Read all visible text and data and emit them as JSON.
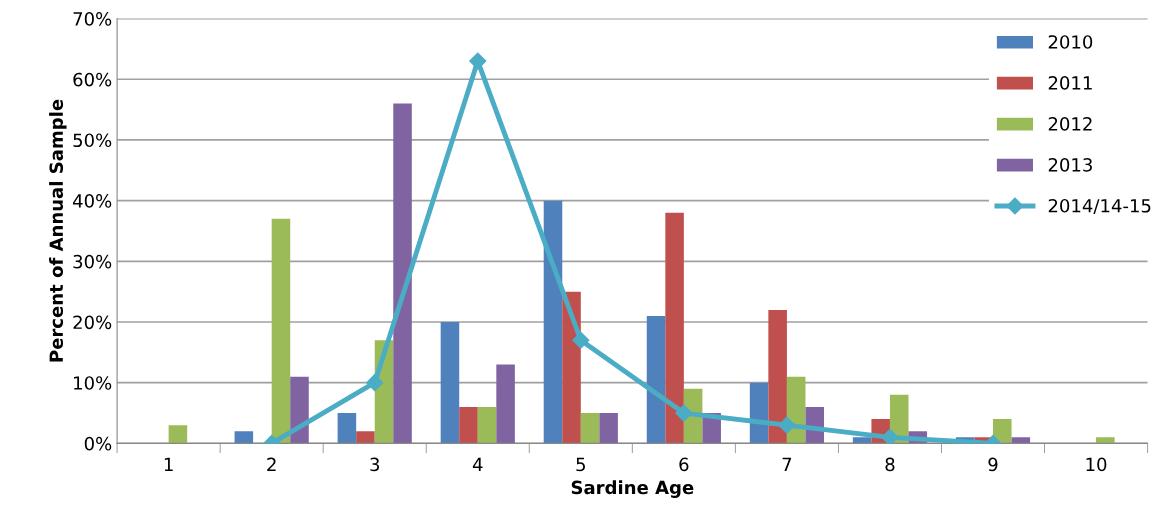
{
  "chart_data": {
    "type": "bar",
    "xlabel": "Sardine Age",
    "ylabel": "Percent of Annual Sample",
    "categories": [
      "1",
      "2",
      "3",
      "4",
      "5",
      "6",
      "7",
      "8",
      "9",
      "10"
    ],
    "series": [
      {
        "name": "2010",
        "color": "#4f81bd",
        "values": [
          0,
          2,
          5,
          20,
          40,
          21,
          10,
          1,
          1,
          0
        ]
      },
      {
        "name": "2011",
        "color": "#c0504d",
        "values": [
          0,
          0,
          2,
          6,
          25,
          38,
          22,
          4,
          1,
          0
        ]
      },
      {
        "name": "2012",
        "color": "#9bbb59",
        "values": [
          3,
          37,
          17,
          6,
          5,
          9,
          11,
          8,
          4,
          1
        ]
      },
      {
        "name": "2013",
        "color": "#8064a2",
        "values": [
          0,
          11,
          56,
          13,
          5,
          5,
          6,
          2,
          1,
          0
        ]
      },
      {
        "name": "2014/14-15",
        "type": "line",
        "color": "#4bacc6",
        "marker": "diamond",
        "values": [
          null,
          0,
          10,
          63,
          17,
          5,
          3,
          1,
          0,
          null
        ]
      }
    ],
    "ylim": [
      0,
      70
    ],
    "yticks": [
      {
        "value": 0,
        "label": "0%"
      },
      {
        "value": 10,
        "label": "10%"
      },
      {
        "value": 20,
        "label": "20%"
      },
      {
        "value": 30,
        "label": "30%"
      },
      {
        "value": 40,
        "label": "40%"
      },
      {
        "value": 50,
        "label": "50%"
      },
      {
        "value": 60,
        "label": "60%"
      },
      {
        "value": 70,
        "label": "70%"
      }
    ],
    "grid": "y",
    "legend": "top right"
  }
}
